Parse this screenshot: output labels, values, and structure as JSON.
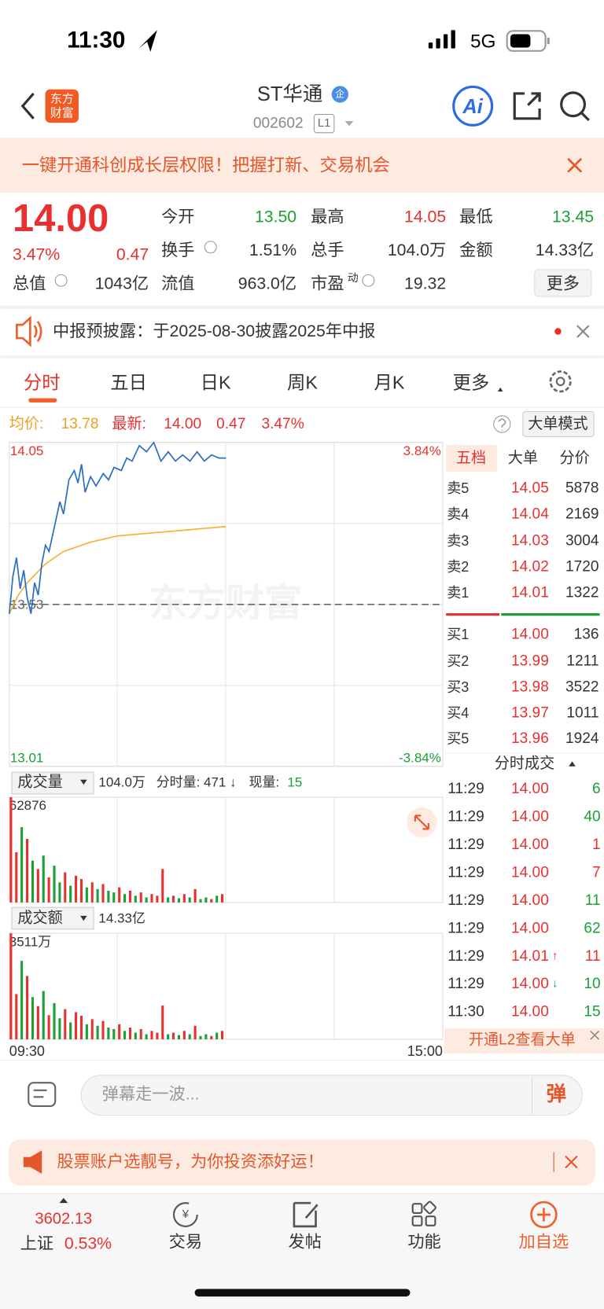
{
  "status": {
    "time": "11:30",
    "network": "5G"
  },
  "header": {
    "logo": [
      "东方",
      "财富"
    ],
    "title": "ST华通",
    "badge": "企",
    "code": "002602",
    "level": "L1",
    "ai": "Ai"
  },
  "banner": {
    "text": "一键开通科创成长层权限！把握打新、交易机会"
  },
  "quote": {
    "price": "14.00",
    "change_pct": "3.47%",
    "change": "0.47",
    "fields": [
      {
        "label": "今开",
        "value": "13.50"
      },
      {
        "label": "最高",
        "value": "14.05"
      },
      {
        "label": "最低",
        "value": "13.45"
      },
      {
        "label": "换手",
        "value": "1.51%"
      },
      {
        "label": "总手",
        "value": "104.0万"
      },
      {
        "label": "金额",
        "value": "14.33亿"
      },
      {
        "label": "总值",
        "value": "1043亿"
      },
      {
        "label": "流值",
        "value": "963.0亿"
      },
      {
        "label": "市盈",
        "sup": "动",
        "value": "19.32"
      }
    ],
    "more": "更多"
  },
  "notice": {
    "text": "中报预披露：于2025-08-30披露2025年中报"
  },
  "tabs": [
    "分时",
    "五日",
    "日K",
    "周K",
    "月K",
    "更多"
  ],
  "summary": {
    "avg_label": "均价:",
    "avg": "13.78",
    "last_label": "最新:",
    "last": "14.00",
    "change": "0.47",
    "change_pct": "3.47%",
    "mode": "大单模式"
  },
  "chart_data": [
    {
      "type": "line",
      "watermark": "东方财富",
      "xlim": [
        "09:30",
        "15:00"
      ],
      "xticks": [
        "09:30",
        "15:00"
      ],
      "ylim": [
        13.01,
        14.05
      ],
      "yticks": [
        14.05,
        13.53,
        13.01
      ],
      "baseline": 13.53,
      "y2lim": [
        -3.84,
        3.84
      ],
      "y2ticks": [
        {
          "value": 3.84,
          "label": "3.84%"
        },
        {
          "value": -3.84,
          "label": "-3.84%"
        }
      ],
      "series": [
        {
          "color": "#2a6dc4",
          "x": [
            "09:30",
            "09:32",
            "09:34",
            "09:36",
            "09:38",
            "09:40",
            "09:42",
            "09:44",
            "09:46",
            "09:48",
            "09:50",
            "09:52",
            "09:55",
            "09:58",
            "10:00",
            "10:03",
            "10:06",
            "10:08",
            "10:10",
            "10:12",
            "10:15",
            "10:18",
            "10:22",
            "10:25",
            "10:28",
            "10:32",
            "10:35",
            "10:38",
            "10:42",
            "10:46",
            "10:50",
            "10:54",
            "10:58",
            "11:02",
            "11:06",
            "11:10",
            "11:14",
            "11:18",
            "11:22",
            "11:26",
            "11:30"
          ],
          "values": [
            13.5,
            13.62,
            13.68,
            13.58,
            13.64,
            13.55,
            13.5,
            13.6,
            13.56,
            13.66,
            13.72,
            13.7,
            13.78,
            13.86,
            13.82,
            13.93,
            13.96,
            13.92,
            13.98,
            13.89,
            13.94,
            13.91,
            13.95,
            13.93,
            13.97,
            13.96,
            14.0,
            13.99,
            14.04,
            14.02,
            14.05,
            13.99,
            14.02,
            13.99,
            14.01,
            13.99,
            14.02,
            13.99,
            14.01,
            14.0,
            14.0
          ]
        },
        {
          "color": "#f5b335",
          "x": [
            "09:30",
            "09:35",
            "09:40",
            "09:50",
            "10:00",
            "10:15",
            "10:30",
            "10:50",
            "11:10",
            "11:30"
          ],
          "values": [
            13.5,
            13.56,
            13.6,
            13.66,
            13.7,
            13.73,
            13.75,
            13.76,
            13.77,
            13.78
          ]
        }
      ]
    },
    {
      "type": "bar",
      "title": "成交量",
      "total": "104.0万",
      "detail": "分时量: 471 ↓",
      "now_label": "现量:",
      "now": "15",
      "up_color": "#e8312f",
      "down_color": "#1aa035",
      "ylim": [
        0,
        62876
      ],
      "yticks": [
        62876
      ],
      "x": [
        "09:30",
        "09:33",
        "09:36",
        "09:39",
        "09:42",
        "09:45",
        "09:48",
        "09:51",
        "09:54",
        "09:57",
        "10:00",
        "10:03",
        "10:06",
        "10:09",
        "10:12",
        "10:15",
        "10:18",
        "10:21",
        "10:24",
        "10:27",
        "10:30",
        "10:33",
        "10:36",
        "10:39",
        "10:42",
        "10:45",
        "10:48",
        "10:51",
        "10:54",
        "10:57",
        "11:00",
        "11:03",
        "11:06",
        "11:09",
        "11:12",
        "11:15",
        "11:18",
        "11:21",
        "11:24",
        "11:27"
      ],
      "values": [
        62876,
        30000,
        45000,
        38000,
        25000,
        20000,
        28000,
        15000,
        22000,
        12000,
        18000,
        10000,
        16000,
        14000,
        9000,
        12000,
        8000,
        11000,
        7000,
        6000,
        9000,
        5000,
        7000,
        4000,
        6000,
        3000,
        5000,
        4000,
        20000,
        3000,
        4000,
        2500,
        5000,
        3000,
        8000,
        2000,
        3000,
        2000,
        4000,
        5000
      ],
      "rising": [
        true,
        true,
        false,
        true,
        false,
        true,
        false,
        true,
        false,
        false,
        true,
        false,
        true,
        true,
        false,
        true,
        false,
        true,
        false,
        false,
        true,
        false,
        true,
        false,
        true,
        false,
        true,
        true,
        true,
        false,
        true,
        false,
        true,
        false,
        true,
        false,
        false,
        true,
        false,
        true
      ]
    },
    {
      "type": "bar",
      "title": "成交额",
      "total": "14.33亿",
      "up_color": "#e8312f",
      "down_color": "#1aa035",
      "ylim": [
        0,
        3511
      ],
      "yticks": [
        {
          "value": 3511,
          "label": "3511万"
        }
      ],
      "x": [
        "09:30",
        "09:33",
        "09:36",
        "09:39",
        "09:42",
        "09:45",
        "09:48",
        "09:51",
        "09:54",
        "09:57",
        "10:00",
        "10:03",
        "10:06",
        "10:09",
        "10:12",
        "10:15",
        "10:18",
        "10:21",
        "10:24",
        "10:27",
        "10:30",
        "10:33",
        "10:36",
        "10:39",
        "10:42",
        "10:45",
        "10:48",
        "10:51",
        "10:54",
        "10:57",
        "11:00",
        "11:03",
        "11:06",
        "11:09",
        "11:12",
        "11:15",
        "11:18",
        "11:21",
        "11:24",
        "11:27"
      ],
      "values": [
        3511,
        1500,
        2600,
        2100,
        1400,
        1100,
        1600,
        800,
        1200,
        700,
        1000,
        560,
        900,
        780,
        500,
        670,
        450,
        610,
        390,
        340,
        500,
        280,
        390,
        220,
        340,
        170,
        280,
        220,
        1120,
        170,
        220,
        140,
        280,
        170,
        450,
        110,
        170,
        110,
        220,
        280
      ],
      "rising": [
        true,
        true,
        false,
        true,
        false,
        true,
        false,
        true,
        false,
        false,
        true,
        false,
        true,
        true,
        false,
        true,
        false,
        true,
        false,
        false,
        true,
        false,
        true,
        false,
        true,
        false,
        true,
        true,
        true,
        false,
        true,
        false,
        true,
        false,
        true,
        false,
        false,
        true,
        false,
        true
      ]
    }
  ],
  "orderbook": {
    "tabs": [
      "五档",
      "大单",
      "分价"
    ],
    "asks": [
      {
        "label": "卖5",
        "price": "14.05",
        "volume": "5878"
      },
      {
        "label": "卖4",
        "price": "14.04",
        "volume": "2169"
      },
      {
        "label": "卖3",
        "price": "14.03",
        "volume": "3004"
      },
      {
        "label": "卖2",
        "price": "14.02",
        "volume": "1720"
      },
      {
        "label": "卖1",
        "price": "14.01",
        "volume": "1322"
      }
    ],
    "bids": [
      {
        "label": "买1",
        "price": "14.00",
        "volume": "136"
      },
      {
        "label": "买2",
        "price": "13.99",
        "volume": "1211"
      },
      {
        "label": "买3",
        "price": "13.98",
        "volume": "3522"
      },
      {
        "label": "买4",
        "price": "13.97",
        "volume": "1011"
      },
      {
        "label": "买5",
        "price": "13.96",
        "volume": "1924"
      }
    ]
  },
  "trades": {
    "title": "分时成交",
    "footer": "开通L2查看大单",
    "rows": [
      {
        "time": "11:29",
        "price": "14.00",
        "volume": "6",
        "color": "#1aa035"
      },
      {
        "time": "11:29",
        "price": "14.00",
        "volume": "40",
        "color": "#1aa035"
      },
      {
        "time": "11:29",
        "price": "14.00",
        "volume": "1",
        "color": "#e8312f"
      },
      {
        "time": "11:29",
        "price": "14.00",
        "volume": "7",
        "color": "#e8312f"
      },
      {
        "time": "11:29",
        "price": "14.00",
        "volume": "11",
        "color": "#1aa035"
      },
      {
        "time": "11:29",
        "price": "14.00",
        "volume": "62",
        "color": "#1aa035"
      },
      {
        "time": "11:29",
        "price": "14.01",
        "arrow": "↑",
        "volume": "11",
        "color": "#e8312f"
      },
      {
        "time": "11:29",
        "price": "14.00",
        "arrow": "↓",
        "volume": "10",
        "color": "#1aa035"
      },
      {
        "time": "11:30",
        "price": "14.00",
        "volume": "15",
        "color": "#1aa035"
      }
    ]
  },
  "comment": {
    "placeholder": "弹幕走一波...",
    "button": "弹"
  },
  "ad": {
    "text": "股票账户选靓号，为你投资添好运！"
  },
  "nav": {
    "index_value": "3602.13",
    "index_name": "上证",
    "index_change": "0.53%",
    "items": [
      "交易",
      "发帖",
      "功能",
      "加自选"
    ]
  }
}
